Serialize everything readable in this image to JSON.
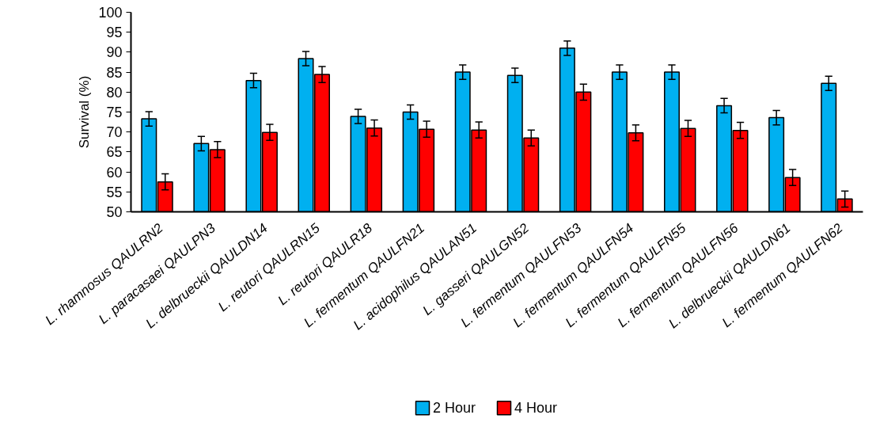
{
  "chart_data": {
    "type": "bar",
    "ylabel": "Survival (%)",
    "categories": [
      "L. rhamnosus QAULRN2",
      "L. paracasaei QAULPN3",
      "L. delbrueckii QAULDN14",
      "L. reutori QAULRN15",
      "L. reutori QAULR18",
      "L. fermentum QAULFN21",
      "L. acidophilus QAULAN51",
      "L. gasseri QAULGN52",
      "L. fermentum QAULFN53",
      "L. fermentum QAULFN54",
      "L. fermentum QAULFN55",
      "L. fermentum QAULFN56",
      "L. delbrueckii QAULDN61",
      "L. fermentum QAULFN62"
    ],
    "series": [
      {
        "name": "2 Hour",
        "color": "#00b0f0",
        "values": [
          73.3,
          67.1,
          82.9,
          88.4,
          73.9,
          75,
          85,
          84.2,
          91,
          85,
          85,
          76.6,
          73.6,
          82.2
        ],
        "errors": [
          1.8,
          1.8,
          1.8,
          1.8,
          1.8,
          1.8,
          1.8,
          1.8,
          1.8,
          1.8,
          1.8,
          1.8,
          1.8,
          1.8
        ]
      },
      {
        "name": "4 Hour",
        "color": "#ff0000",
        "values": [
          57.5,
          65.6,
          69.9,
          84.4,
          71,
          70.7,
          70.5,
          68.5,
          80,
          69.8,
          70.9,
          70.4,
          58.6,
          53.2
        ],
        "errors": [
          2,
          2,
          2,
          2,
          2,
          2,
          2,
          2,
          2,
          2,
          2,
          2,
          2,
          2
        ]
      }
    ],
    "ylim": [
      50,
      100
    ],
    "yticks": [
      50,
      55,
      60,
      65,
      70,
      75,
      80,
      85,
      90,
      95,
      100
    ],
    "grid": false,
    "legend": "bottom"
  }
}
